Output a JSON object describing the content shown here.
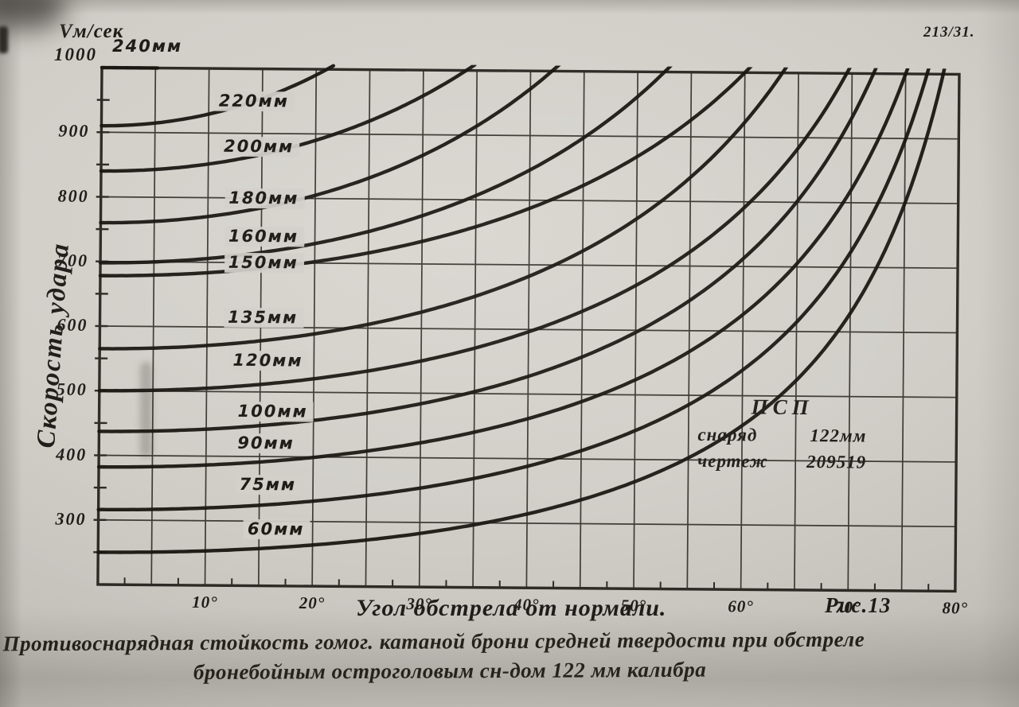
{
  "doc_number": "213/31.",
  "figure_label": "Рис.13",
  "header": {
    "y_unit_label": "Vм/сек",
    "top_tick_value": "1000",
    "top_curve_label": "240мм"
  },
  "y_axis": {
    "title": "Скорость удара",
    "tick_values": [
      900,
      800,
      700,
      600,
      500,
      400,
      300
    ]
  },
  "x_axis": {
    "title": "Угол обстрела от нормали.",
    "tick_values": [
      10,
      20,
      30,
      40,
      50,
      60,
      70,
      80
    ],
    "degree_suffix": "°"
  },
  "legend": {
    "title": "ПСП",
    "rows": [
      {
        "label": "снаряд",
        "value": "122мм"
      },
      {
        "label": "чертеж",
        "value": "209519"
      }
    ]
  },
  "caption": {
    "line1": "Противоснарядная стойкость гомог. катаной брони средней твердости при обстреле",
    "line2": "бронебойным остроголовым сн-дом 122 мм калибра"
  },
  "colors": {
    "paper": "#d2cfc8",
    "ink": "#1c1916",
    "curve": "#15110d",
    "grid": "#3b3731",
    "frame": "#2b2723"
  },
  "chart_data": {
    "type": "line",
    "title": "Противоснарядная стойкость гомог. катаной брони средней твердости при обстреле бронебойным остроголовым сн-дом 122 мм калибра",
    "xlabel": "Угол обстрела от нормали (градусы)",
    "ylabel": "Скорость удара, V м/сек",
    "xlim": [
      0,
      80
    ],
    "ylim": [
      200,
      1000
    ],
    "grid": {
      "x_major_step_deg": 5,
      "x_minor_step_deg": 2.5,
      "y_major_step": 100,
      "y_minor_step": 50
    },
    "legend_note": {
      "type": "ПСП",
      "projectile": "снаряд 122мм",
      "drawing": "чертеж 209519"
    },
    "series": [
      {
        "thickness_mm": 240,
        "label": "240мм",
        "v0_mps": 1000,
        "angle_at_1000_mps": 4.5,
        "points": [
          [
            0,
            1000
          ],
          [
            4.5,
            1000
          ]
        ]
      },
      {
        "thickness_mm": 220,
        "label": "220мм",
        "v0_mps": 910,
        "angle_at_1000_mps": 21,
        "label_pos": [
          11,
          950
        ],
        "points": [
          [
            0,
            910
          ],
          [
            10,
            930
          ],
          [
            21,
            1000
          ]
        ]
      },
      {
        "thickness_mm": 200,
        "label": "200мм",
        "v0_mps": 840,
        "angle_at_1000_mps": 34,
        "label_pos": [
          11.5,
          880
        ],
        "points": [
          [
            0,
            840
          ],
          [
            17,
            875
          ],
          [
            34,
            1000
          ]
        ]
      },
      {
        "thickness_mm": 180,
        "label": "180мм",
        "v0_mps": 760,
        "angle_at_1000_mps": 42,
        "label_pos": [
          12,
          800
        ],
        "points": [
          [
            0,
            760
          ],
          [
            21,
            810
          ],
          [
            42,
            1000
          ]
        ]
      },
      {
        "thickness_mm": 160,
        "label": "160мм",
        "v0_mps": 698,
        "angle_at_1000_mps": 52.5,
        "label_pos": [
          12,
          740
        ],
        "points": [
          [
            0,
            698
          ],
          [
            26,
            755
          ],
          [
            52.5,
            1000
          ]
        ]
      },
      {
        "thickness_mm": 150,
        "label": "150мм",
        "v0_mps": 678,
        "angle_at_1000_mps": 60,
        "label_pos": [
          12,
          700
        ],
        "points": [
          [
            0,
            678
          ],
          [
            30,
            735
          ],
          [
            60,
            1000
          ]
        ]
      },
      {
        "thickness_mm": 135,
        "label": "135мм",
        "v0_mps": 565,
        "angle_at_1000_mps": 63.5,
        "label_pos": [
          12,
          615
        ],
        "points": [
          [
            0,
            565
          ],
          [
            32,
            635
          ],
          [
            63.5,
            1000
          ]
        ]
      },
      {
        "thickness_mm": 120,
        "label": "120мм",
        "v0_mps": 500,
        "angle_at_1000_mps": 69.5,
        "label_pos": [
          12.5,
          548
        ],
        "points": [
          [
            0,
            500
          ],
          [
            35,
            570
          ],
          [
            69.5,
            1000
          ]
        ]
      },
      {
        "thickness_mm": 100,
        "label": "100мм",
        "v0_mps": 437,
        "angle_at_1000_mps": 72,
        "label_pos": [
          13,
          470
        ],
        "points": [
          [
            0,
            437
          ],
          [
            36,
            510
          ],
          [
            72,
            1000
          ]
        ]
      },
      {
        "thickness_mm": 90,
        "label": "90мм",
        "v0_mps": 382,
        "angle_at_1000_mps": 75,
        "label_pos": [
          13,
          420
        ],
        "points": [
          [
            0,
            382
          ],
          [
            38,
            450
          ],
          [
            75,
            1000
          ]
        ]
      },
      {
        "thickness_mm": 75,
        "label": "75мм",
        "v0_mps": 316,
        "angle_at_1000_mps": 77,
        "label_pos": [
          13.2,
          356
        ],
        "points": [
          [
            0,
            316
          ],
          [
            38,
            380
          ],
          [
            77,
            1000
          ]
        ]
      },
      {
        "thickness_mm": 60,
        "label": "60мм",
        "v0_mps": 250,
        "angle_at_1000_mps": 78.5,
        "label_pos": [
          14,
          288
        ],
        "points": [
          [
            0,
            250
          ],
          [
            39,
            310
          ],
          [
            78.5,
            1000
          ]
        ]
      }
    ]
  }
}
